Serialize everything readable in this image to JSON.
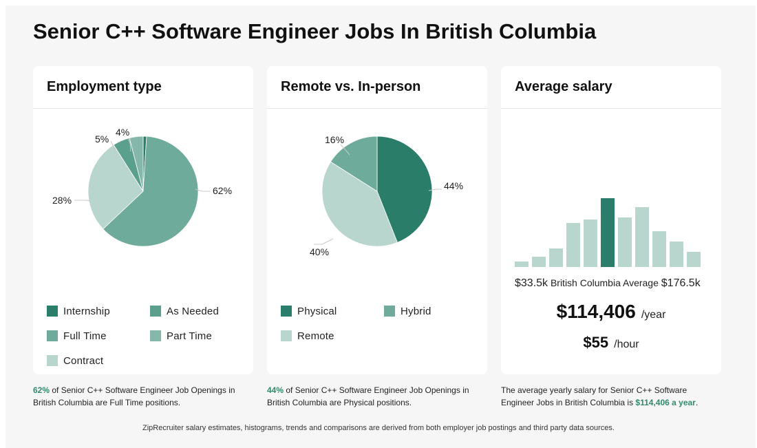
{
  "title": "Senior C++ Software Engineer Jobs In British Columbia",
  "colors": {
    "dark": "#2a7e69",
    "medium": "#5b9f8d",
    "main": "#6eab9a",
    "light": "#85b8aa",
    "pale": "#b9d6ce",
    "highlight": "#2f8a6b"
  },
  "employment": {
    "title": "Employment type",
    "legend": [
      "Internship",
      "As Needed",
      "Full Time",
      "Part Time",
      "Contract"
    ],
    "labels": [
      "62%",
      "28%",
      "5%",
      "4%"
    ],
    "caption": {
      "highlight": "62%",
      "text": " of Senior C++ Software Engineer Job Openings in British Columbia are Full Time positions."
    }
  },
  "remote": {
    "title": "Remote vs. In-person",
    "legend": [
      "Physical",
      "Hybrid",
      "Remote"
    ],
    "labels": [
      "44%",
      "40%",
      "16%"
    ],
    "caption": {
      "highlight": "44%",
      "text": " of Senior C++ Software Engineer Job Openings in British Columbia are Physical positions."
    }
  },
  "salary": {
    "title": "Average salary",
    "min": "$33.5k",
    "range_label": "British Columbia Average",
    "max": "$176.5k",
    "yearly": "$114,406",
    "yearly_unit": "/year",
    "hourly": "$55",
    "hourly_unit": "/hour",
    "caption": {
      "text": "The average yearly salary for Senior C++ Software Engineer Jobs in British Columbia is ",
      "highlight": "$114,406 a year",
      "end": "."
    }
  },
  "footer": "ZipRecruiter salary estimates, histograms, trends and comparisons are derived from both employer job postings and third party data sources.",
  "chart_data": [
    {
      "type": "pie",
      "title": "Employment type",
      "slices": [
        {
          "name": "Internship",
          "value": 1
        },
        {
          "name": "Full Time",
          "value": 62
        },
        {
          "name": "Contract",
          "value": 28
        },
        {
          "name": "As Needed",
          "value": 5
        },
        {
          "name": "Part Time",
          "value": 4
        }
      ]
    },
    {
      "type": "pie",
      "title": "Remote vs. In-person",
      "slices": [
        {
          "name": "Physical",
          "value": 44
        },
        {
          "name": "Remote",
          "value": 40
        },
        {
          "name": "Hybrid",
          "value": 16
        }
      ]
    },
    {
      "type": "bar",
      "title": "Average salary",
      "values": [
        8,
        15,
        27,
        64,
        69,
        100,
        72,
        87,
        52,
        37,
        22
      ],
      "highlight_index": 5
    }
  ]
}
